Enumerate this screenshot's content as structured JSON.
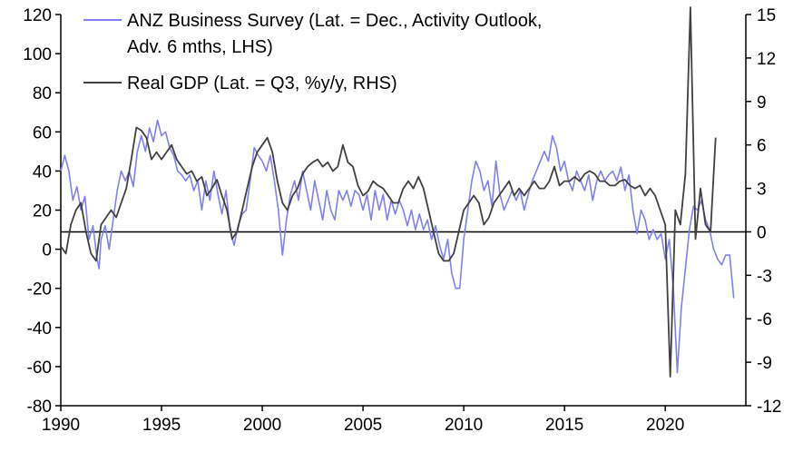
{
  "chart_data": {
    "type": "line",
    "title": "",
    "xlabel": "",
    "ylabel": "",
    "x_axis": {
      "range": [
        1990,
        2024
      ],
      "ticks": [
        1990,
        1995,
        2000,
        2005,
        2010,
        2015,
        2020
      ]
    },
    "y_left": {
      "range": [
        -80,
        120
      ],
      "ticks": [
        120,
        100,
        80,
        60,
        40,
        20,
        0,
        -20,
        -40,
        -60,
        -80
      ]
    },
    "y_right": {
      "range": [
        -12,
        15
      ],
      "ticks": [
        15,
        12,
        9,
        6,
        3,
        0,
        -3,
        -6,
        -9,
        -12
      ]
    },
    "reference_line": {
      "axis": "right",
      "value": 0
    },
    "legend_position": "top-center",
    "series": [
      {
        "name": "ANZ Business Survey",
        "label_line1": "ANZ Business Survey (Lat. = Dec., Activity Outlook,",
        "label_line2": "Adv. 6 mths, LHS)",
        "axis": "left",
        "color": "#8080f0",
        "points": [
          [
            1990.0,
            40
          ],
          [
            1990.2,
            48
          ],
          [
            1990.4,
            40
          ],
          [
            1990.6,
            25
          ],
          [
            1990.8,
            32
          ],
          [
            1991.0,
            20
          ],
          [
            1991.2,
            27
          ],
          [
            1991.4,
            5
          ],
          [
            1991.6,
            12
          ],
          [
            1991.8,
            -5
          ],
          [
            1991.9,
            -10
          ],
          [
            1992.0,
            5
          ],
          [
            1992.2,
            12
          ],
          [
            1992.4,
            0
          ],
          [
            1992.6,
            15
          ],
          [
            1992.8,
            30
          ],
          [
            1993.0,
            40
          ],
          [
            1993.2,
            35
          ],
          [
            1993.4,
            40
          ],
          [
            1993.6,
            32
          ],
          [
            1993.8,
            50
          ],
          [
            1994.0,
            58
          ],
          [
            1994.2,
            50
          ],
          [
            1994.4,
            62
          ],
          [
            1994.6,
            55
          ],
          [
            1994.8,
            66
          ],
          [
            1995.0,
            58
          ],
          [
            1995.2,
            60
          ],
          [
            1995.4,
            52
          ],
          [
            1995.6,
            48
          ],
          [
            1995.8,
            40
          ],
          [
            1996.0,
            38
          ],
          [
            1996.2,
            35
          ],
          [
            1996.4,
            38
          ],
          [
            1996.6,
            30
          ],
          [
            1996.8,
            35
          ],
          [
            1997.0,
            20
          ],
          [
            1997.2,
            35
          ],
          [
            1997.4,
            25
          ],
          [
            1997.6,
            40
          ],
          [
            1997.8,
            28
          ],
          [
            1998.0,
            18
          ],
          [
            1998.2,
            30
          ],
          [
            1998.4,
            10
          ],
          [
            1998.6,
            2
          ],
          [
            1998.8,
            12
          ],
          [
            1999.0,
            18
          ],
          [
            1999.2,
            20
          ],
          [
            1999.4,
            35
          ],
          [
            1999.6,
            52
          ],
          [
            1999.8,
            48
          ],
          [
            2000.0,
            45
          ],
          [
            2000.2,
            40
          ],
          [
            2000.4,
            48
          ],
          [
            2000.6,
            35
          ],
          [
            2000.8,
            20
          ],
          [
            2001.0,
            -3
          ],
          [
            2001.2,
            15
          ],
          [
            2001.4,
            28
          ],
          [
            2001.6,
            35
          ],
          [
            2001.8,
            25
          ],
          [
            2002.0,
            40
          ],
          [
            2002.2,
            30
          ],
          [
            2002.4,
            20
          ],
          [
            2002.6,
            35
          ],
          [
            2002.8,
            25
          ],
          [
            2003.0,
            15
          ],
          [
            2003.2,
            30
          ],
          [
            2003.4,
            20
          ],
          [
            2003.6,
            15
          ],
          [
            2003.8,
            30
          ],
          [
            2004.0,
            25
          ],
          [
            2004.2,
            30
          ],
          [
            2004.4,
            22
          ],
          [
            2004.6,
            30
          ],
          [
            2004.8,
            28
          ],
          [
            2005.0,
            20
          ],
          [
            2005.2,
            28
          ],
          [
            2005.4,
            15
          ],
          [
            2005.6,
            30
          ],
          [
            2005.8,
            20
          ],
          [
            2006.0,
            28
          ],
          [
            2006.2,
            15
          ],
          [
            2006.4,
            25
          ],
          [
            2006.6,
            18
          ],
          [
            2006.8,
            25
          ],
          [
            2007.0,
            20
          ],
          [
            2007.2,
            12
          ],
          [
            2007.4,
            20
          ],
          [
            2007.6,
            10
          ],
          [
            2007.8,
            18
          ],
          [
            2008.0,
            10
          ],
          [
            2008.2,
            15
          ],
          [
            2008.4,
            5
          ],
          [
            2008.6,
            12
          ],
          [
            2008.8,
            2
          ],
          [
            2009.0,
            -5
          ],
          [
            2009.2,
            5
          ],
          [
            2009.4,
            -12
          ],
          [
            2009.6,
            -20
          ],
          [
            2009.8,
            -20
          ],
          [
            2010.0,
            5
          ],
          [
            2010.2,
            20
          ],
          [
            2010.4,
            35
          ],
          [
            2010.6,
            45
          ],
          [
            2010.8,
            40
          ],
          [
            2011.0,
            30
          ],
          [
            2011.2,
            35
          ],
          [
            2011.4,
            22
          ],
          [
            2011.6,
            45
          ],
          [
            2011.8,
            28
          ],
          [
            2012.0,
            20
          ],
          [
            2012.2,
            25
          ],
          [
            2012.4,
            30
          ],
          [
            2012.6,
            25
          ],
          [
            2012.8,
            30
          ],
          [
            2013.0,
            20
          ],
          [
            2013.2,
            28
          ],
          [
            2013.4,
            35
          ],
          [
            2013.6,
            40
          ],
          [
            2013.8,
            45
          ],
          [
            2014.0,
            50
          ],
          [
            2014.2,
            45
          ],
          [
            2014.4,
            58
          ],
          [
            2014.6,
            52
          ],
          [
            2014.8,
            40
          ],
          [
            2015.0,
            45
          ],
          [
            2015.2,
            35
          ],
          [
            2015.4,
            30
          ],
          [
            2015.6,
            40
          ],
          [
            2015.8,
            35
          ],
          [
            2016.0,
            30
          ],
          [
            2016.2,
            38
          ],
          [
            2016.4,
            25
          ],
          [
            2016.6,
            35
          ],
          [
            2016.8,
            40
          ],
          [
            2017.0,
            35
          ],
          [
            2017.2,
            38
          ],
          [
            2017.4,
            40
          ],
          [
            2017.6,
            35
          ],
          [
            2017.8,
            42
          ],
          [
            2018.0,
            30
          ],
          [
            2018.2,
            38
          ],
          [
            2018.4,
            20
          ],
          [
            2018.6,
            8
          ],
          [
            2018.8,
            20
          ],
          [
            2019.0,
            15
          ],
          [
            2019.2,
            5
          ],
          [
            2019.4,
            10
          ],
          [
            2019.6,
            5
          ],
          [
            2019.8,
            8
          ],
          [
            2020.0,
            -5
          ],
          [
            2020.2,
            5
          ],
          [
            2020.4,
            -20
          ],
          [
            2020.6,
            -63
          ],
          [
            2020.8,
            -30
          ],
          [
            2021.0,
            -10
          ],
          [
            2021.2,
            10
          ],
          [
            2021.4,
            22
          ],
          [
            2021.6,
            20
          ],
          [
            2021.8,
            25
          ],
          [
            2022.0,
            15
          ],
          [
            2022.2,
            10
          ],
          [
            2022.4,
            0
          ],
          [
            2022.6,
            -5
          ],
          [
            2022.8,
            -8
          ],
          [
            2023.0,
            -3
          ],
          [
            2023.2,
            -3
          ],
          [
            2023.4,
            -25
          ]
        ]
      },
      {
        "name": "Real GDP",
        "label_line1": "Real GDP (Lat. = Q3, %y/y, RHS)",
        "axis": "right",
        "color": "#404040",
        "points": [
          [
            1990.0,
            -1
          ],
          [
            1990.25,
            -1.5
          ],
          [
            1990.5,
            0.5
          ],
          [
            1990.75,
            1.5
          ],
          [
            1991.0,
            2
          ],
          [
            1991.25,
            0
          ],
          [
            1991.5,
            -1.5
          ],
          [
            1991.75,
            -2
          ],
          [
            1992.0,
            0.5
          ],
          [
            1992.25,
            1
          ],
          [
            1992.5,
            1.5
          ],
          [
            1992.75,
            1
          ],
          [
            1993.0,
            2
          ],
          [
            1993.25,
            3
          ],
          [
            1993.5,
            5
          ],
          [
            1993.75,
            7.2
          ],
          [
            1994.0,
            7
          ],
          [
            1994.25,
            6.5
          ],
          [
            1994.5,
            5
          ],
          [
            1994.75,
            5.5
          ],
          [
            1995.0,
            5
          ],
          [
            1995.25,
            5.5
          ],
          [
            1995.5,
            6
          ],
          [
            1995.75,
            5
          ],
          [
            1996.0,
            4.5
          ],
          [
            1996.25,
            4
          ],
          [
            1996.5,
            4.2
          ],
          [
            1996.75,
            3.5
          ],
          [
            1997.0,
            3.8
          ],
          [
            1997.25,
            2.5
          ],
          [
            1997.5,
            3
          ],
          [
            1997.75,
            3.6
          ],
          [
            1998.0,
            2.5
          ],
          [
            1998.25,
            1.5
          ],
          [
            1998.5,
            -0.5
          ],
          [
            1998.75,
            0
          ],
          [
            1999.0,
            1.5
          ],
          [
            1999.25,
            3
          ],
          [
            1999.5,
            4.5
          ],
          [
            1999.75,
            5.5
          ],
          [
            2000.0,
            6
          ],
          [
            2000.25,
            6.5
          ],
          [
            2000.5,
            5.5
          ],
          [
            2000.75,
            3.5
          ],
          [
            2001.0,
            2
          ],
          [
            2001.25,
            1.5
          ],
          [
            2001.5,
            2.5
          ],
          [
            2001.75,
            3
          ],
          [
            2002.0,
            4
          ],
          [
            2002.25,
            4.5
          ],
          [
            2002.5,
            4.8
          ],
          [
            2002.75,
            5
          ],
          [
            2003.0,
            4.5
          ],
          [
            2003.25,
            4.8
          ],
          [
            2003.5,
            4.2
          ],
          [
            2003.75,
            4.5
          ],
          [
            2004.0,
            6
          ],
          [
            2004.25,
            4.8
          ],
          [
            2004.5,
            4.5
          ],
          [
            2004.75,
            3.2
          ],
          [
            2005.0,
            2.5
          ],
          [
            2005.25,
            2.8
          ],
          [
            2005.5,
            3.5
          ],
          [
            2005.75,
            3.2
          ],
          [
            2006.0,
            3
          ],
          [
            2006.25,
            2.5
          ],
          [
            2006.5,
            2
          ],
          [
            2006.75,
            2
          ],
          [
            2007.0,
            3
          ],
          [
            2007.25,
            3.5
          ],
          [
            2007.5,
            3
          ],
          [
            2007.75,
            3.8
          ],
          [
            2008.0,
            3
          ],
          [
            2008.25,
            1.5
          ],
          [
            2008.5,
            0
          ],
          [
            2008.75,
            -1.5
          ],
          [
            2009.0,
            -2
          ],
          [
            2009.25,
            -2
          ],
          [
            2009.5,
            -1.5
          ],
          [
            2009.75,
            0
          ],
          [
            2010.0,
            1.5
          ],
          [
            2010.25,
            2
          ],
          [
            2010.5,
            2.5
          ],
          [
            2010.75,
            2
          ],
          [
            2011.0,
            0.5
          ],
          [
            2011.25,
            1
          ],
          [
            2011.5,
            2
          ],
          [
            2011.75,
            2.5
          ],
          [
            2012.0,
            3
          ],
          [
            2012.25,
            3.5
          ],
          [
            2012.5,
            2.5
          ],
          [
            2012.75,
            3
          ],
          [
            2013.0,
            2.5
          ],
          [
            2013.25,
            3
          ],
          [
            2013.5,
            3.5
          ],
          [
            2013.75,
            3
          ],
          [
            2014.0,
            3
          ],
          [
            2014.25,
            3.5
          ],
          [
            2014.5,
            4.5
          ],
          [
            2014.75,
            3.2
          ],
          [
            2015.0,
            3.5
          ],
          [
            2015.25,
            3.5
          ],
          [
            2015.5,
            3.8
          ],
          [
            2015.75,
            3.5
          ],
          [
            2016.0,
            4
          ],
          [
            2016.25,
            4.2
          ],
          [
            2016.5,
            4
          ],
          [
            2016.75,
            3.5
          ],
          [
            2017.0,
            3.5
          ],
          [
            2017.25,
            3.2
          ],
          [
            2017.5,
            3.2
          ],
          [
            2017.75,
            3.5
          ],
          [
            2018.0,
            3.6
          ],
          [
            2018.25,
            3.2
          ],
          [
            2018.5,
            3
          ],
          [
            2018.75,
            3.2
          ],
          [
            2019.0,
            2.5
          ],
          [
            2019.25,
            3
          ],
          [
            2019.5,
            2.5
          ],
          [
            2019.75,
            1.5
          ],
          [
            2020.0,
            0.5
          ],
          [
            2020.25,
            -10
          ],
          [
            2020.5,
            1.5
          ],
          [
            2020.75,
            0.5
          ],
          [
            2021.0,
            4
          ],
          [
            2021.25,
            15.5
          ],
          [
            2021.5,
            -0.5
          ],
          [
            2021.75,
            3
          ],
          [
            2022.0,
            0.5
          ],
          [
            2022.25,
            0
          ],
          [
            2022.5,
            6.5
          ]
        ]
      }
    ]
  }
}
